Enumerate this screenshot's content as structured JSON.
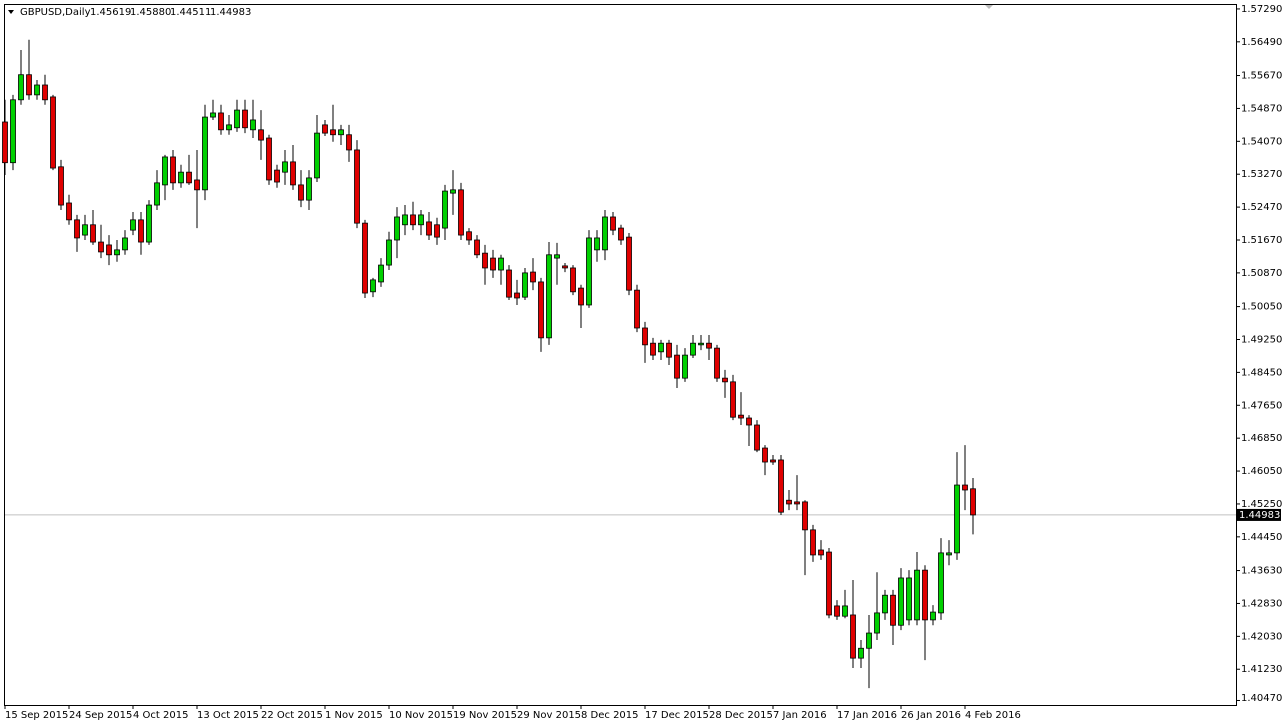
{
  "chart_data": {
    "type": "candlestick",
    "symbol": "GBPUSD,Daily",
    "header_values": [
      "1.45619",
      "1.45880",
      "1.44511",
      "1.44983"
    ],
    "up_color": "#00d000",
    "down_color": "#e00000",
    "ylim": [
      1.4036,
      1.5741
    ],
    "yticks": [
      {
        "value": 1.5729,
        "label": "1.57290"
      },
      {
        "value": 1.5649,
        "label": "1.56490"
      },
      {
        "value": 1.5567,
        "label": "1.55670"
      },
      {
        "value": 1.5487,
        "label": "1.54870"
      },
      {
        "value": 1.5407,
        "label": "1.54070"
      },
      {
        "value": 1.5327,
        "label": "1.53270"
      },
      {
        "value": 1.5247,
        "label": "1.52470"
      },
      {
        "value": 1.5167,
        "label": "1.51670"
      },
      {
        "value": 1.5087,
        "label": "1.50870"
      },
      {
        "value": 1.5005,
        "label": "1.50050"
      },
      {
        "value": 1.4925,
        "label": "1.49250"
      },
      {
        "value": 1.4845,
        "label": "1.48450"
      },
      {
        "value": 1.4765,
        "label": "1.47650"
      },
      {
        "value": 1.4685,
        "label": "1.46850"
      },
      {
        "value": 1.4605,
        "label": "1.46050"
      },
      {
        "value": 1.4525,
        "label": "1.45250"
      },
      {
        "value": 1.4445,
        "label": "1.44450"
      },
      {
        "value": 1.4363,
        "label": "1.43630"
      },
      {
        "value": 1.4283,
        "label": "1.42830"
      },
      {
        "value": 1.4203,
        "label": "1.42030"
      },
      {
        "value": 1.4123,
        "label": "1.41230"
      },
      {
        "value": 1.4047,
        "label": "1.40470"
      }
    ],
    "last_price": {
      "value": 1.44983,
      "label": "1.44983"
    },
    "categories": [
      "15 Sep 2015",
      null,
      null,
      null,
      null,
      null,
      null,
      null,
      "24 Sep 2015",
      null,
      null,
      null,
      null,
      null,
      null,
      null,
      "4 Oct 2015",
      null,
      null,
      null,
      null,
      null,
      null,
      null,
      "13 Oct 2015",
      null,
      null,
      null,
      null,
      null,
      null,
      null,
      "22 Oct 2015",
      null,
      null,
      null,
      null,
      null,
      null,
      null,
      "1 Nov 2015",
      null,
      null,
      null,
      null,
      null,
      null,
      null,
      "10 Nov 2015",
      null,
      null,
      null,
      null,
      null,
      null,
      null,
      "19 Nov 2015",
      null,
      null,
      null,
      null,
      null,
      null,
      null,
      "29 Nov 2015",
      null,
      null,
      null,
      null,
      null,
      null,
      null,
      "8 Dec 2015",
      null,
      null,
      null,
      null,
      null,
      null,
      null,
      "17 Dec 2015",
      null,
      null,
      null,
      null,
      null,
      null,
      null,
      "28 Dec 2015",
      null,
      null,
      null,
      null,
      null,
      null,
      null,
      "7 Jan 2016",
      null,
      null,
      null,
      null,
      null,
      null,
      null,
      "17 Jan 2016",
      null,
      null,
      null,
      null,
      null,
      null,
      null,
      "26 Jan 2016",
      null,
      null,
      null,
      null,
      null,
      null,
      null,
      "4 Feb 2016",
      null
    ],
    "open": [
      1.5454,
      1.5355,
      1.5508,
      1.5569,
      1.552,
      1.5544,
      1.5515,
      1.5345,
      1.5257,
      1.5216,
      1.5179,
      1.5204,
      1.5162,
      1.5155,
      1.5131,
      1.5143,
      1.5191,
      1.5216,
      1.5162,
      1.5252,
      1.5301,
      1.5369,
      1.5306,
      1.5332,
      1.5313,
      1.5289,
      1.5466,
      1.5476,
      1.5435,
      1.544,
      1.5483,
      1.5435,
      1.5435,
      1.5415,
      1.5337,
      1.5332,
      1.5357,
      1.5301,
      1.5264,
      1.5318,
      1.5447,
      1.5435,
      1.5423,
      1.5423,
      1.5386,
      1.5208,
      1.5041,
      1.5065,
      1.5106,
      1.5167,
      1.5204,
      1.5228,
      1.5204,
      1.5211,
      1.5204,
      1.5196,
      1.5281,
      1.5289,
      1.5187,
      1.5167,
      1.5135,
      1.5123,
      1.5094,
      1.5094,
      1.5038,
      1.5028,
      1.5089,
      1.5065,
      1.4929,
      1.5123,
      1.5104,
      1.5099,
      1.505,
      1.5009,
      1.5143,
      1.5143,
      1.5223,
      1.5196,
      1.5174,
      1.5045,
      1.4953,
      1.4916,
      1.4895,
      1.4916,
      1.4887,
      1.4831,
      1.4887,
      1.4912,
      1.4916,
      1.4904,
      1.4831,
      1.4822,
      1.4741,
      1.4734,
      1.4717,
      1.4661,
      1.4632,
      1.4632,
      1.4534,
      1.453,
      1.453,
      1.4462,
      1.4413,
      1.4408,
      1.4277,
      1.4252,
      1.4255,
      1.415,
      1.4174,
      1.4211,
      1.426,
      1.4303,
      1.423,
      1.4243,
      1.4243,
      1.4364,
      1.4243,
      1.426,
      1.4401,
      1.4406,
      1.4571,
      1.45619
    ],
    "high": [
      1.5508,
      1.552,
      1.5629,
      1.5654,
      1.5556,
      1.5569,
      1.552,
      1.5362,
      1.5277,
      1.5228,
      1.5228,
      1.524,
      1.5204,
      1.5179,
      1.5167,
      1.5191,
      1.5235,
      1.5235,
      1.5264,
      1.5337,
      1.5374,
      1.5386,
      1.535,
      1.5374,
      1.5386,
      1.5496,
      1.5508,
      1.5496,
      1.5471,
      1.5508,
      1.5508,
      1.5508,
      1.5483,
      1.5423,
      1.535,
      1.5386,
      1.5398,
      1.5337,
      1.5337,
      1.5471,
      1.5459,
      1.5496,
      1.5447,
      1.5447,
      1.541,
      1.5216,
      1.5075,
      1.5123,
      1.5187,
      1.5247,
      1.5252,
      1.526,
      1.524,
      1.5235,
      1.5221,
      1.5301,
      1.5337,
      1.5306,
      1.5196,
      1.5179,
      1.5155,
      1.5143,
      1.5131,
      1.5106,
      1.507,
      1.5099,
      1.5123,
      1.5075,
      1.5162,
      1.516,
      1.5111,
      1.5106,
      1.5058,
      1.5191,
      1.5191,
      1.524,
      1.5235,
      1.5204,
      1.5184,
      1.5058,
      1.4968,
      1.4929,
      1.4924,
      1.4924,
      1.4912,
      1.4904,
      1.4936,
      1.4936,
      1.4936,
      1.4912,
      1.4851,
      1.4839,
      1.4797,
      1.4741,
      1.4729,
      1.4668,
      1.4644,
      1.4644,
      1.4559,
      1.4595,
      1.4534,
      1.4474,
      1.4437,
      1.4418,
      1.4291,
      1.4316,
      1.434,
      1.4194,
      1.4255,
      1.4359,
      1.4316,
      1.4316,
      1.4369,
      1.4364,
      1.4408,
      1.4376,
      1.4279,
      1.4442,
      1.4437,
      1.4651,
      1.4668,
      1.4588
    ],
    "low": [
      1.5325,
      1.5337,
      1.5496,
      1.5508,
      1.5508,
      1.5496,
      1.5337,
      1.524,
      1.5204,
      1.5138,
      1.5167,
      1.5155,
      1.5123,
      1.5106,
      1.5114,
      1.5131,
      1.5179,
      1.5131,
      1.5155,
      1.524,
      1.5264,
      1.5289,
      1.5294,
      1.5301,
      1.5196,
      1.5264,
      1.5459,
      1.5423,
      1.5423,
      1.543,
      1.5427,
      1.5415,
      1.5362,
      1.5301,
      1.5294,
      1.5301,
      1.5289,
      1.5247,
      1.524,
      1.5308,
      1.542,
      1.5406,
      1.5398,
      1.5357,
      1.5196,
      1.5026,
      1.5028,
      1.5053,
      1.5094,
      1.5123,
      1.5179,
      1.5191,
      1.5179,
      1.5167,
      1.5155,
      1.5167,
      1.5228,
      1.5167,
      1.5155,
      1.5123,
      1.5058,
      1.5075,
      1.5058,
      1.5021,
      1.5009,
      1.5021,
      1.5045,
      1.4895,
      1.4912,
      1.5058,
      1.5089,
      1.5033,
      1.4953,
      1.5002,
      1.5114,
      1.5118,
      1.5179,
      1.5155,
      1.5033,
      1.4943,
      1.4868,
      1.4875,
      1.4875,
      1.4863,
      1.4807,
      1.4822,
      1.488,
      1.4899,
      1.4875,
      1.4822,
      1.4783,
      1.4729,
      1.4717,
      1.4666,
      1.4651,
      1.4595,
      1.462,
      1.4498,
      1.451,
      1.451,
      1.4352,
      1.4384,
      1.4389,
      1.4247,
      1.4243,
      1.4247,
      1.4126,
      1.4126,
      1.4077,
      1.4194,
      1.4243,
      1.4182,
      1.4218,
      1.423,
      1.423,
      1.4145,
      1.423,
      1.4243,
      1.4376,
      1.4389,
      1.451,
      1.44511
    ],
    "close": [
      1.5355,
      1.5508,
      1.5569,
      1.552,
      1.5544,
      1.5508,
      1.5342,
      1.5252,
      1.5216,
      1.5172,
      1.5204,
      1.5162,
      1.5138,
      1.5131,
      1.5143,
      1.5172,
      1.5216,
      1.5162,
      1.5252,
      1.5306,
      1.5369,
      1.5306,
      1.5332,
      1.5306,
      1.5289,
      1.5466,
      1.5476,
      1.5435,
      1.5447,
      1.5483,
      1.544,
      1.5459,
      1.541,
      1.5313,
      1.5308,
      1.5357,
      1.5301,
      1.5264,
      1.5318,
      1.5427,
      1.5427,
      1.5423,
      1.5435,
      1.5386,
      1.5208,
      1.5038,
      1.507,
      1.5106,
      1.5167,
      1.5223,
      1.5228,
      1.5204,
      1.5228,
      1.5179,
      1.5174,
      1.5286,
      1.5289,
      1.5179,
      1.5167,
      1.5131,
      1.5099,
      1.5094,
      1.5123,
      1.5028,
      1.5026,
      1.5087,
      1.5065,
      1.4929,
      1.5131,
      1.5131,
      1.5099,
      1.5041,
      1.5009,
      1.5172,
      1.5172,
      1.5223,
      1.5191,
      1.5167,
      1.5045,
      1.4953,
      1.4912,
      1.4887,
      1.4916,
      1.4882,
      1.4831,
      1.4887,
      1.4916,
      1.4916,
      1.4904,
      1.4831,
      1.4822,
      1.4736,
      1.4734,
      1.4717,
      1.4656,
      1.4627,
      1.4627,
      1.4505,
      1.4525,
      1.4525,
      1.4462,
      1.4401,
      1.4401,
      1.4255,
      1.4252,
      1.4277,
      1.415,
      1.4174,
      1.4211,
      1.426,
      1.4303,
      1.423,
      1.4345,
      1.4345,
      1.4364,
      1.4243,
      1.4262,
      1.4406,
      1.4406,
      1.4571,
      1.4559,
      1.44983
    ]
  }
}
